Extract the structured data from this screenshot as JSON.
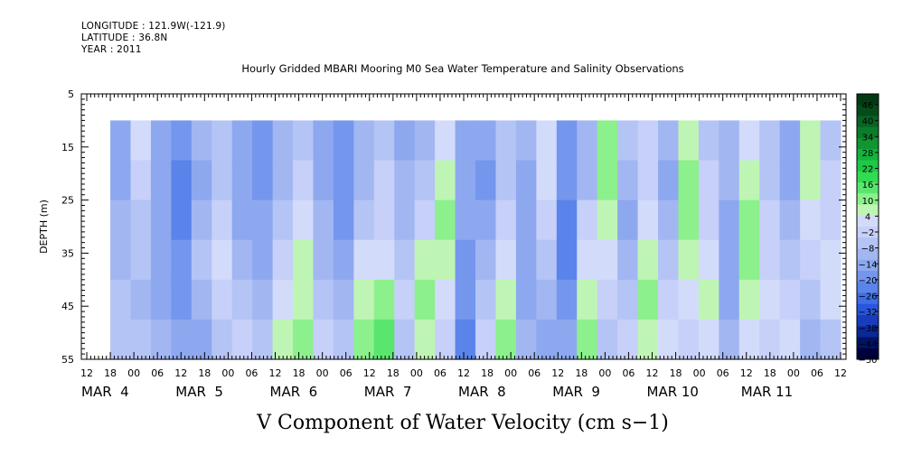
{
  "header": {
    "longitude": "LONGITUDE : 121.9W(-121.9)",
    "latitude": "LATITUDE : 36.8N",
    "year": "YEAR : 2011"
  },
  "chart_data": {
    "type": "heatmap",
    "title": "Hourly Gridded MBARI Mooring M0 Sea Water Temperature and Salinity Observations",
    "xlabel": "V Component of Water Velocity (cm s−1)",
    "ylabel": "DEPTH (m)",
    "y_ticks": [
      5,
      15,
      25,
      35,
      45,
      55
    ],
    "ylim": [
      5,
      55
    ],
    "y_inverted": true,
    "x_hour_ticks": [
      "12",
      "18",
      "00",
      "06",
      "12",
      "18",
      "00",
      "06",
      "12",
      "18",
      "00",
      "06",
      "12",
      "18",
      "00",
      "06",
      "12",
      "18",
      "00",
      "06",
      "12",
      "18",
      "00",
      "06",
      "12",
      "18",
      "00",
      "06",
      "12",
      "18",
      "00",
      "06",
      "12"
    ],
    "x_day_labels": [
      "MAR  4",
      "MAR  5",
      "MAR  6",
      "MAR  7",
      "MAR  8",
      "MAR  9",
      "MAR 10",
      "MAR 11"
    ],
    "data_depth_range": [
      10,
      55
    ],
    "colorbar_ticks": [
      "46",
      "40",
      "34",
      "28",
      "22",
      "16",
      "10",
      "4",
      "−2",
      "−8",
      "−14",
      "−20",
      "−26",
      "−32",
      "−38",
      "−44",
      "−50"
    ],
    "colorbar_range": [
      -50,
      52
    ],
    "colorbar_colors": [
      "#00003c",
      "#001364",
      "#0a2896",
      "#173cbe",
      "#2856dc",
      "#3d6ee6",
      "#5a84ea",
      "#7496ed",
      "#8da8ef",
      "#a2b6f2",
      "#b4c4f5",
      "#c6d0f8",
      "#d2dbfa",
      "#bff5b4",
      "#8cf08c",
      "#5ae66e",
      "#32dc50",
      "#1ec846",
      "#14b43c",
      "#0f9632",
      "#0a7d2a",
      "#086423",
      "#054b1a",
      "#033a14"
    ],
    "columns_per_day_hours": [
      18,
      282
    ],
    "heat_values": [
      [
        -14,
        -14,
        -10,
        -8,
        -6,
        -4
      ],
      [
        2,
        0,
        -4,
        -6,
        -8,
        -4
      ],
      [
        -12,
        -14,
        -16,
        -14,
        -12,
        -10
      ],
      [
        -20,
        -22,
        -22,
        -20,
        -18,
        -16
      ],
      [
        -10,
        -12,
        -8,
        -6,
        -10,
        -14
      ],
      [
        -6,
        -4,
        0,
        2,
        -2,
        -6
      ],
      [
        -14,
        -16,
        -14,
        -10,
        -6,
        -2
      ],
      [
        -18,
        -20,
        -16,
        -12,
        -8,
        -4
      ],
      [
        -10,
        -8,
        -4,
        0,
        4,
        8
      ],
      [
        -6,
        -2,
        2,
        6,
        8,
        10
      ],
      [
        -14,
        -12,
        -10,
        -8,
        -4,
        -2
      ],
      [
        -18,
        -20,
        -18,
        -14,
        -10,
        -6
      ],
      [
        -10,
        -8,
        -4,
        2,
        8,
        10
      ],
      [
        -4,
        -2,
        0,
        4,
        10,
        16
      ],
      [
        -12,
        -10,
        -8,
        -4,
        -2,
        -6
      ],
      [
        -8,
        -4,
        0,
        6,
        10,
        8
      ],
      [
        2,
        6,
        10,
        8,
        4,
        -2
      ],
      [
        -12,
        -14,
        -16,
        -18,
        -20,
        -22
      ],
      [
        -16,
        -18,
        -14,
        -8,
        -4,
        0
      ],
      [
        -6,
        -4,
        0,
        4,
        8,
        12
      ],
      [
        -10,
        -12,
        -14,
        -16,
        -12,
        -8
      ],
      [
        4,
        2,
        -2,
        -6,
        -10,
        -14
      ],
      [
        -18,
        -20,
        -22,
        -24,
        -20,
        -16
      ],
      [
        -10,
        -8,
        -2,
        4,
        8,
        12
      ],
      [
        10,
        12,
        8,
        4,
        0,
        -4
      ],
      [
        -6,
        -10,
        -14,
        -10,
        -6,
        -2
      ],
      [
        -2,
        0,
        4,
        8,
        10,
        6
      ],
      [
        -10,
        -12,
        -10,
        -6,
        -2,
        2
      ],
      [
        8,
        10,
        12,
        8,
        4,
        0
      ],
      [
        -4,
        -2,
        0,
        2,
        6,
        4
      ],
      [
        -8,
        -10,
        -12,
        -14,
        -12,
        -10
      ],
      [
        2,
        6,
        10,
        12,
        8,
        4
      ],
      [
        -6,
        -4,
        -2,
        0,
        2,
        -2
      ],
      [
        -12,
        -14,
        -10,
        -6,
        -2,
        4
      ],
      [
        6,
        8,
        4,
        0,
        -4,
        -8
      ],
      [
        -4,
        -2,
        0,
        2,
        4,
        -4
      ]
    ]
  }
}
